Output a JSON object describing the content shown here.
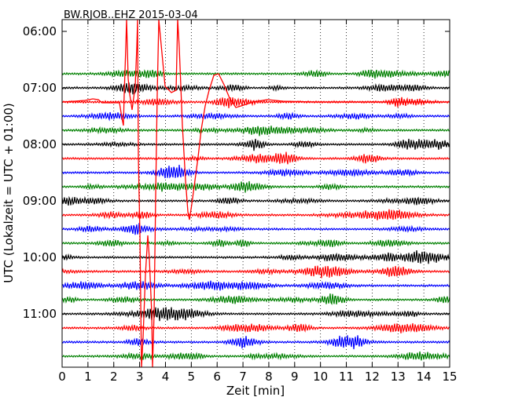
{
  "chart_data": {
    "type": "line",
    "title": "BW.RJOB..EHZ 2015-03-04",
    "xlabel": "Zeit  [min]",
    "ylabel": "UTC (Lokalzeit = UTC + 01:00)",
    "xlim": [
      0,
      15
    ],
    "x_ticks": [
      "0",
      "1",
      "2",
      "3",
      "4",
      "5",
      "6",
      "7",
      "8",
      "9",
      "10",
      "11",
      "12",
      "13",
      "14",
      "15"
    ],
    "y_ticks": [
      "06:00",
      "07:00",
      "08:00",
      "09:00",
      "10:00",
      "11:00"
    ],
    "grid": "vertical dotted",
    "trace_colors": [
      "#008000",
      "#000000",
      "#ff0000",
      "#0000ff"
    ],
    "traces_start": "06:45",
    "traces_end": "11:45",
    "trace_interval_minutes": 15
  }
}
